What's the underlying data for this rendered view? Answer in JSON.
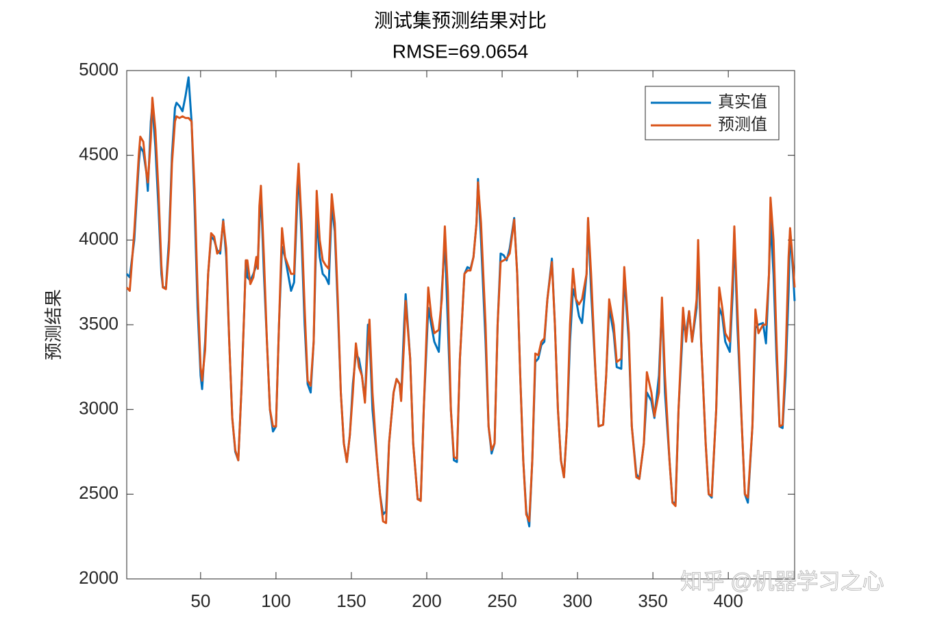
{
  "chart_data": {
    "type": "line",
    "title": "测试集预测结果对比",
    "subtitle": "RMSE=69.0654",
    "y_label": "预测结果",
    "watermark": "知乎 @机器学习之心",
    "legend": "upper right",
    "xlim": [
      1,
      444
    ],
    "ylim": [
      2000,
      5000
    ],
    "xticks": [
      50,
      100,
      150,
      200,
      250,
      300,
      350,
      400
    ],
    "yticks": [
      2000,
      2500,
      3000,
      3500,
      4000,
      4500,
      5000
    ],
    "x": [
      1,
      3,
      6,
      9,
      10,
      12,
      14,
      15,
      17,
      18,
      20,
      22,
      24,
      25,
      27,
      29,
      31,
      33,
      34,
      36,
      38,
      40,
      42,
      44,
      46,
      48,
      50,
      51,
      53,
      55,
      57,
      59,
      61,
      63,
      65,
      67,
      69,
      71,
      73,
      75,
      77,
      79,
      80,
      81,
      83,
      85,
      87,
      88,
      89,
      90,
      92,
      94,
      96,
      98,
      100,
      102,
      104,
      106,
      108,
      110,
      112,
      114,
      115,
      117,
      119,
      121,
      123,
      125,
      127,
      129,
      131,
      133,
      135,
      137,
      139,
      141,
      143,
      145,
      147,
      149,
      151,
      153,
      155,
      157,
      159,
      161,
      162,
      164,
      167,
      169,
      171,
      173,
      175,
      178,
      180,
      182,
      183,
      185,
      186,
      189,
      191,
      194,
      196,
      198,
      201,
      203,
      205,
      208,
      210,
      212,
      214,
      216,
      218,
      220,
      222,
      225,
      227,
      229,
      231,
      233,
      234,
      236,
      239,
      241,
      243,
      245,
      247,
      249,
      251,
      253,
      255,
      258,
      260,
      262,
      264,
      266,
      268,
      270,
      272,
      274,
      276,
      278,
      280,
      283,
      285,
      287,
      289,
      291,
      293,
      295,
      297,
      299,
      301,
      303,
      306,
      307,
      309,
      312,
      314,
      317,
      319,
      321,
      324,
      326,
      329,
      331,
      334,
      336,
      339,
      341,
      344,
      346,
      349,
      351,
      354,
      356,
      358,
      361,
      363,
      365,
      367,
      370,
      372,
      374,
      376,
      379,
      380,
      382,
      385,
      387,
      389,
      392,
      394,
      396,
      398,
      401,
      403,
      404,
      406,
      409,
      411,
      413,
      416,
      418,
      420,
      423,
      425,
      427,
      428,
      430,
      432,
      434,
      436,
      438,
      440,
      441,
      443,
      444
    ],
    "series": [
      {
        "name": "真实值",
        "color": "#0072BD",
        "values": [
          3800,
          3780,
          4000,
          4450,
          4550,
          4520,
          4400,
          4290,
          4700,
          4800,
          4550,
          4200,
          3800,
          3720,
          3720,
          4000,
          4500,
          4780,
          4810,
          4790,
          4760,
          4850,
          4960,
          4700,
          4200,
          3600,
          3200,
          3120,
          3400,
          3800,
          4020,
          4000,
          3940,
          3920,
          4120,
          3900,
          3400,
          2950,
          2750,
          2700,
          3100,
          3600,
          3880,
          3780,
          3760,
          3800,
          3850,
          3880,
          4100,
          4280,
          3800,
          3400,
          3000,
          2870,
          2900,
          3500,
          3960,
          3900,
          3800,
          3700,
          3750,
          4200,
          4420,
          4000,
          3500,
          3150,
          3100,
          3400,
          4140,
          3900,
          3800,
          3780,
          3740,
          4200,
          4050,
          3600,
          3100,
          2800,
          2690,
          2850,
          3150,
          3330,
          3300,
          3200,
          3050,
          3500,
          3450,
          3000,
          2700,
          2500,
          2380,
          2400,
          2800,
          3100,
          3180,
          3150,
          3060,
          3500,
          3680,
          3300,
          2800,
          2470,
          2470,
          3000,
          3600,
          3500,
          3400,
          3340,
          3700,
          4000,
          3500,
          3000,
          2700,
          2690,
          3300,
          3800,
          3840,
          3830,
          3900,
          4100,
          4360,
          4000,
          3400,
          2900,
          2740,
          2800,
          3500,
          3920,
          3910,
          3880,
          3950,
          4130,
          3800,
          3200,
          2700,
          2400,
          2310,
          2700,
          3280,
          3300,
          3380,
          3400,
          3650,
          3890,
          3500,
          3000,
          2700,
          2600,
          2900,
          3400,
          3710,
          3650,
          3550,
          3510,
          3800,
          4120,
          3700,
          3200,
          2900,
          2910,
          3200,
          3600,
          3450,
          3250,
          3240,
          3790,
          3400,
          2900,
          2620,
          2590,
          2800,
          3100,
          3050,
          2950,
          3200,
          3620,
          3100,
          2700,
          2450,
          2450,
          3000,
          3500,
          3450,
          3580,
          3400,
          3600,
          3890,
          3400,
          2800,
          2500,
          2480,
          3000,
          3600,
          3550,
          3400,
          3340,
          3700,
          4050,
          3500,
          2900,
          2500,
          2450,
          2900,
          3480,
          3500,
          3510,
          3390,
          3800,
          4120,
          3800,
          3300,
          2900,
          2890,
          3200,
          3700,
          4060,
          3800,
          3640
        ]
      },
      {
        "name": "预测值",
        "color": "#D95319",
        "values": [
          3720,
          3700,
          4050,
          4500,
          4610,
          4580,
          4400,
          4340,
          4600,
          4840,
          4650,
          4300,
          3850,
          3720,
          3710,
          3950,
          4450,
          4700,
          4730,
          4720,
          4730,
          4720,
          4720,
          4700,
          4300,
          3700,
          3250,
          3170,
          3350,
          3800,
          4040,
          4020,
          3920,
          3940,
          4110,
          3950,
          3400,
          2950,
          2760,
          2700,
          3100,
          3600,
          3880,
          3880,
          3740,
          3780,
          3900,
          3830,
          4200,
          4320,
          3900,
          3400,
          3000,
          2900,
          2900,
          3500,
          4070,
          3900,
          3850,
          3800,
          3800,
          4300,
          4450,
          4100,
          3600,
          3170,
          3140,
          3400,
          4290,
          4000,
          3880,
          3850,
          3830,
          4270,
          4100,
          3650,
          3100,
          2800,
          2690,
          2850,
          3100,
          3390,
          3250,
          3200,
          3040,
          3400,
          3530,
          3100,
          2700,
          2500,
          2340,
          2330,
          2800,
          3100,
          3180,
          3150,
          3050,
          3400,
          3640,
          3300,
          2800,
          2470,
          2460,
          3000,
          3720,
          3550,
          3450,
          3470,
          3650,
          4080,
          3700,
          3000,
          2720,
          2710,
          3300,
          3800,
          3820,
          3820,
          3900,
          4100,
          4340,
          4100,
          3500,
          2900,
          2760,
          2800,
          3500,
          3870,
          3880,
          3890,
          3920,
          4120,
          3800,
          3200,
          2700,
          2380,
          2340,
          2700,
          3330,
          3320,
          3400,
          3420,
          3650,
          3870,
          3500,
          3000,
          2700,
          2600,
          2900,
          3500,
          3830,
          3650,
          3620,
          3650,
          3800,
          4130,
          3800,
          3200,
          2900,
          2910,
          3200,
          3650,
          3500,
          3280,
          3300,
          3840,
          3450,
          2900,
          2600,
          2590,
          2800,
          3220,
          3100,
          2960,
          3100,
          3660,
          3200,
          2700,
          2450,
          2430,
          3000,
          3600,
          3400,
          3580,
          3400,
          3650,
          4000,
          3400,
          2800,
          2500,
          2490,
          3000,
          3720,
          3600,
          3450,
          3400,
          3800,
          4080,
          3600,
          2900,
          2500,
          2480,
          2900,
          3590,
          3450,
          3500,
          3500,
          3800,
          4250,
          4000,
          3400,
          2900,
          2910,
          3300,
          3900,
          4070,
          3850,
          3720
        ]
      }
    ]
  }
}
